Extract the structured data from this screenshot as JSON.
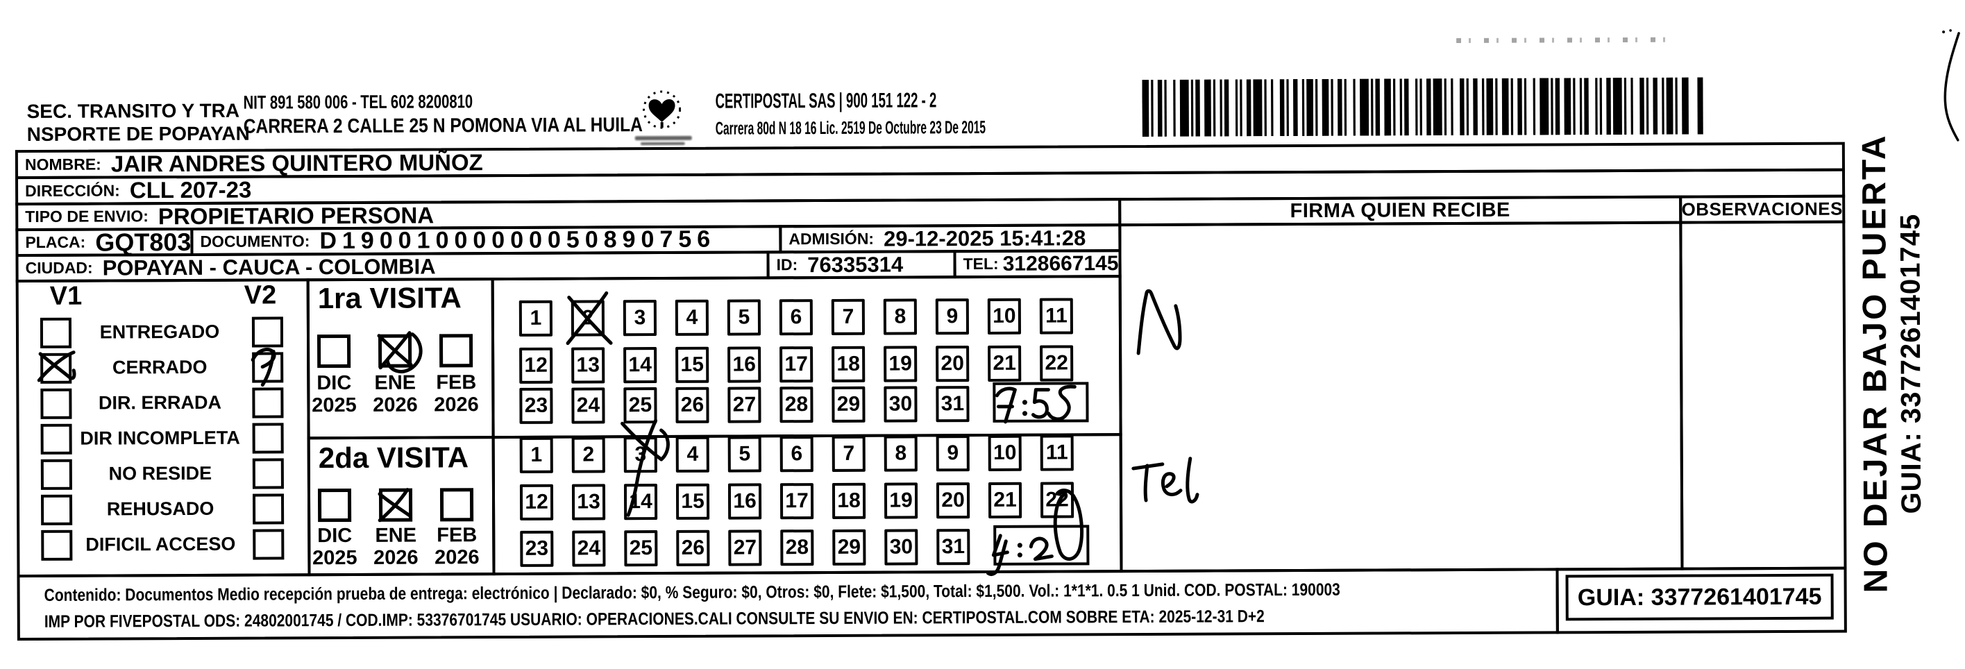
{
  "doc": {
    "sender_line1": "SEC. TRANSITO Y TRA",
    "sender_line2": "NSPORTE DE POPAYAN",
    "nit_line": "NIT 891 580 006 - TEL 602 8200810",
    "sender_address": "CARRERA 2 CALLE 25 N POMONA VIA AL HUILA",
    "company_line": "CERTIPOSTAL SAS | 900 151 122 - 2",
    "company_address": "Carrera 80d N 18 16  Lic. 2519 De Octubre 23 De 2015",
    "logo_icon": "heart-logo"
  },
  "fields": {
    "nombre_label": "NOMBRE:",
    "nombre": "JAIR ANDRES QUINTERO MUÑOZ",
    "direccion_label": "DIRECCIÓN:",
    "direccion": "CLL 207-23",
    "tipo_envio_label": "TIPO DE ENVIO:",
    "tipo_envio": "PROPIETARIO PERSONA",
    "placa_label": "PLACA:",
    "placa": "GQT803",
    "documento_label": "DOCUMENTO:",
    "documento": "D19001000000050890756",
    "admision_label": "ADMISIÓN:",
    "admision": "29-12-2025 15:41:28",
    "ciudad_label": "CIUDAD:",
    "ciudad": "POPAYAN - CAUCA - COLOMBIA",
    "id_label": "ID:",
    "id_value": "76335314",
    "tel_label": "TEL:",
    "tel": "3128667145"
  },
  "status_panel": {
    "v1": "V1",
    "v2": "V2",
    "options": [
      "ENTREGADO",
      "CERRADO",
      "DIR. ERRADA",
      "DIR INCOMPLETA",
      "NO RESIDE",
      "REHUSADO",
      "DIFICIL ACCESO"
    ],
    "v1_marked": "CERRADO",
    "v2_marked": "CERRADO"
  },
  "visits": {
    "day_rows": [
      [
        "1",
        "2",
        "3",
        "4",
        "5",
        "6",
        "7",
        "8",
        "9",
        "10",
        "11"
      ],
      [
        "12",
        "13",
        "14",
        "15",
        "16",
        "17",
        "18",
        "19",
        "20",
        "21",
        "22"
      ],
      [
        "23",
        "24",
        "25",
        "26",
        "27",
        "28",
        "29",
        "30",
        "31"
      ]
    ],
    "first": {
      "title": "1ra VISITA",
      "months": [
        "DIC",
        "ENE",
        "FEB"
      ],
      "years": [
        "2025",
        "2026",
        "2026"
      ],
      "marked_month": "ENE 2026",
      "marked_day": "2",
      "time_written": "7:55"
    },
    "second": {
      "title": "2da VISITA",
      "months": [
        "DIC",
        "ENE",
        "FEB"
      ],
      "years": [
        "2025",
        "2026",
        "2026"
      ],
      "marked_month": "ENE 2026",
      "marked_day": "3",
      "time_written": "4:20"
    }
  },
  "columns": {
    "firma": "FIRMA QUIEN RECIBE",
    "observaciones": "OBSERVACIONES",
    "firma_note_top": "N",
    "firma_note_bottom": "Tel"
  },
  "side": {
    "line1": "NO DEJAR BAJO PUERTA",
    "line2": "GUIA: 3377261401745"
  },
  "footer": {
    "content_line": "Contenido: Documentos Medio recepción prueba de entrega: electrónico | Declarado: $0, % Seguro: $0, Otros: $0, Flete: $1,500, Total: $1,500. Vol.: 1*1*1. 0.5  1 Unid. COD. POSTAL: 190003",
    "imp_line": "IMP POR FIVEPOSTAL ODS: 24802001745 / COD.IMP: 53376701745 USUARIO: OPERACIONES.CALI CONSULTE SU ENVIO EN: CERTIPOSTAL.COM SOBRE ETA: 2025-12-31 D+2",
    "guia": "GUIA: 3377261401745"
  },
  "barcode": {
    "icon": "barcode",
    "linked_guia": "3377261401745"
  }
}
